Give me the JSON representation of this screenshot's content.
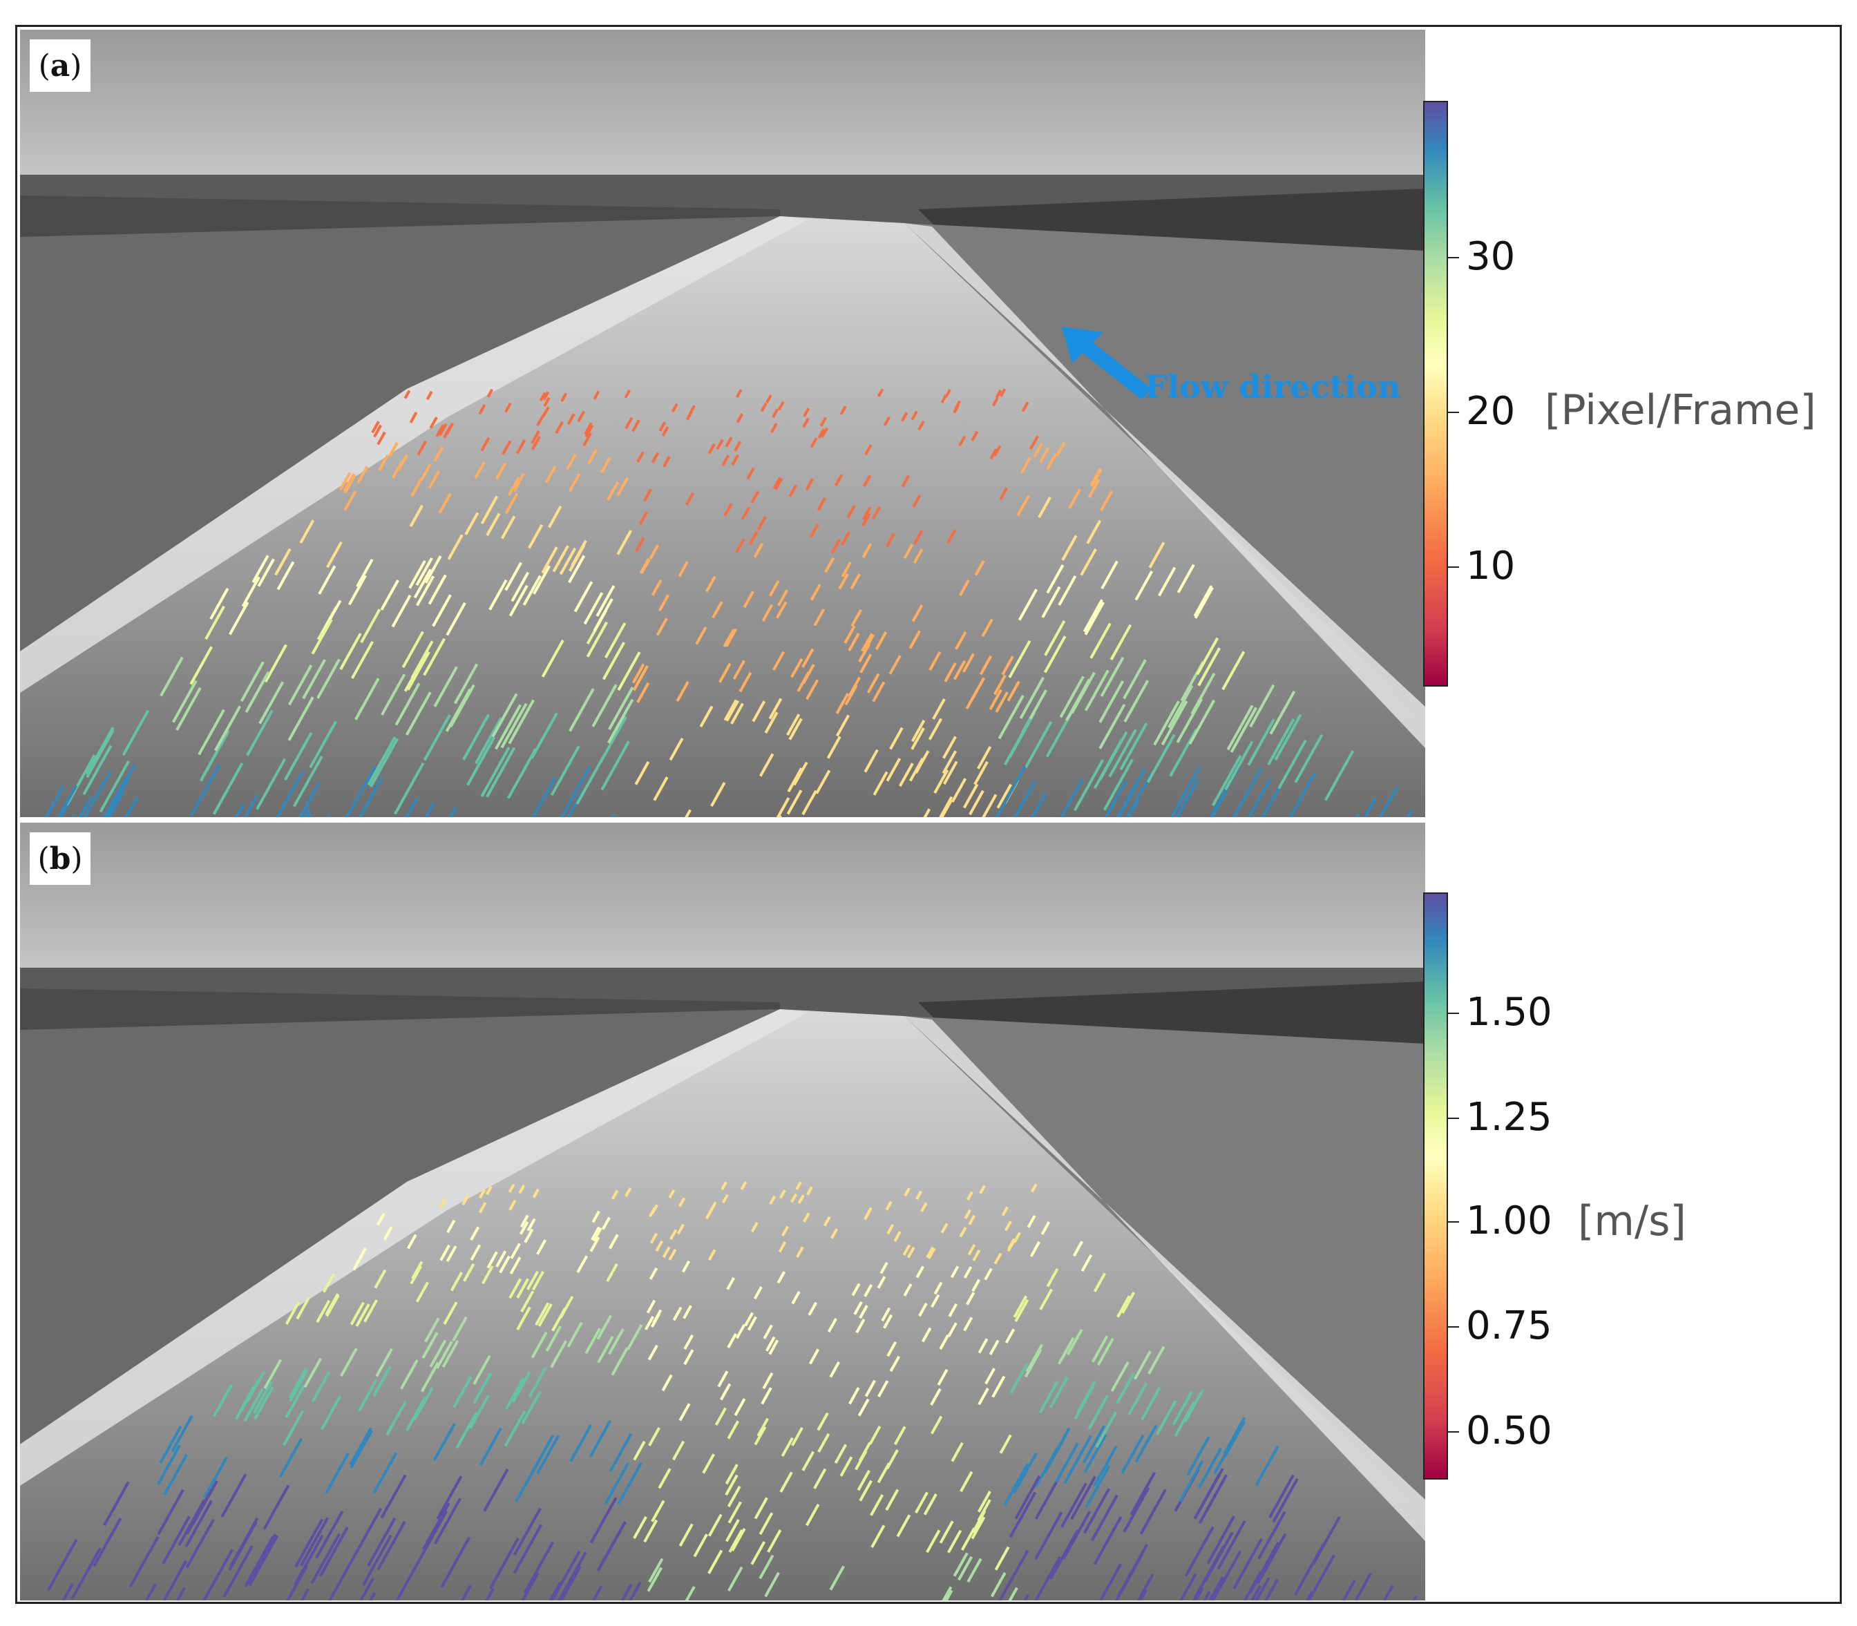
{
  "panels": [
    {
      "label_letter": "a",
      "colorbar": {
        "unit": "[Pixel/Frame]",
        "ticks": [
          "30",
          "20",
          "10"
        ],
        "range": [
          0,
          38
        ],
        "colormap": "Spectral"
      },
      "annotation": "Flow direction",
      "annotation_color": "#1a8ee0"
    },
    {
      "label_letter": "b",
      "colorbar": {
        "unit": "[m/s]",
        "ticks": [
          "1.50",
          "1.25",
          "1.00",
          "0.75",
          "0.50"
        ],
        "range": [
          0.33,
          1.72
        ],
        "colormap": "Spectral"
      }
    }
  ]
}
